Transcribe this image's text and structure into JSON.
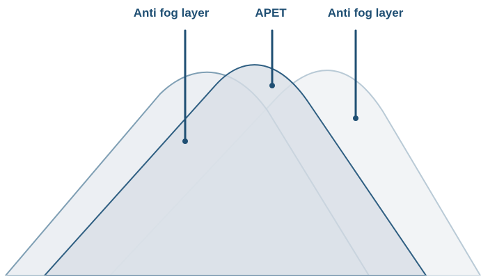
{
  "labels": {
    "left_layer": "Anti fog layer",
    "center_layer": "APET",
    "right_layer": "Anti fog layer"
  },
  "colors": {
    "label_text": "#1f4f73",
    "leader_line": "#1f4f73",
    "left_layer_stroke": "#7f9fb4",
    "left_layer_fill": "#e4e9ee",
    "center_layer_stroke": "#2f5f82",
    "center_layer_fill": "#d9dfe6",
    "right_layer_stroke": "#b9cad6",
    "right_layer_fill": "#f2f4f6"
  }
}
